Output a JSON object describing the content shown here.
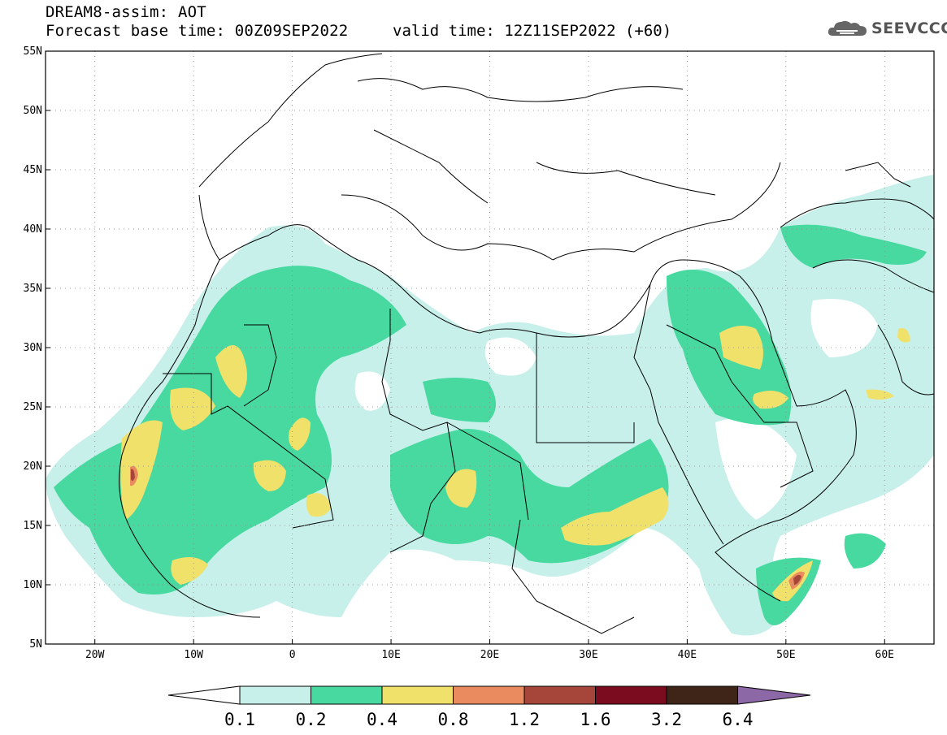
{
  "header": {
    "title_line1": "DREAM8-assim: AOT",
    "title_line2": "Forecast base time: 00Z09SEP2022",
    "valid_time": "valid time: 12Z11SEP2022 (+60)",
    "logo_text": "SEEVCCC"
  },
  "map": {
    "lon_range": [
      -25,
      65
    ],
    "lat_range": [
      5,
      55
    ],
    "lat_labels": [
      "55N",
      "50N",
      "45N",
      "40N",
      "35N",
      "30N",
      "25N",
      "20N",
      "15N",
      "10N",
      "5N"
    ],
    "lon_labels": [
      "20W",
      "10W",
      "0",
      "10E",
      "20E",
      "30E",
      "40E",
      "50E",
      "60E"
    ],
    "grid": "dotted"
  },
  "colorbar": {
    "labels": [
      "0.1",
      "0.2",
      "0.4",
      "0.8",
      "1.2",
      "1.6",
      "3.2",
      "6.4"
    ],
    "colors": [
      "#c8f0ea",
      "#47d9a0",
      "#f0e16a",
      "#e98a5f",
      "#a6453a",
      "#7b0b1e",
      "#3f2517",
      "#8c68a6"
    ],
    "under_color": "#ffffff"
  }
}
